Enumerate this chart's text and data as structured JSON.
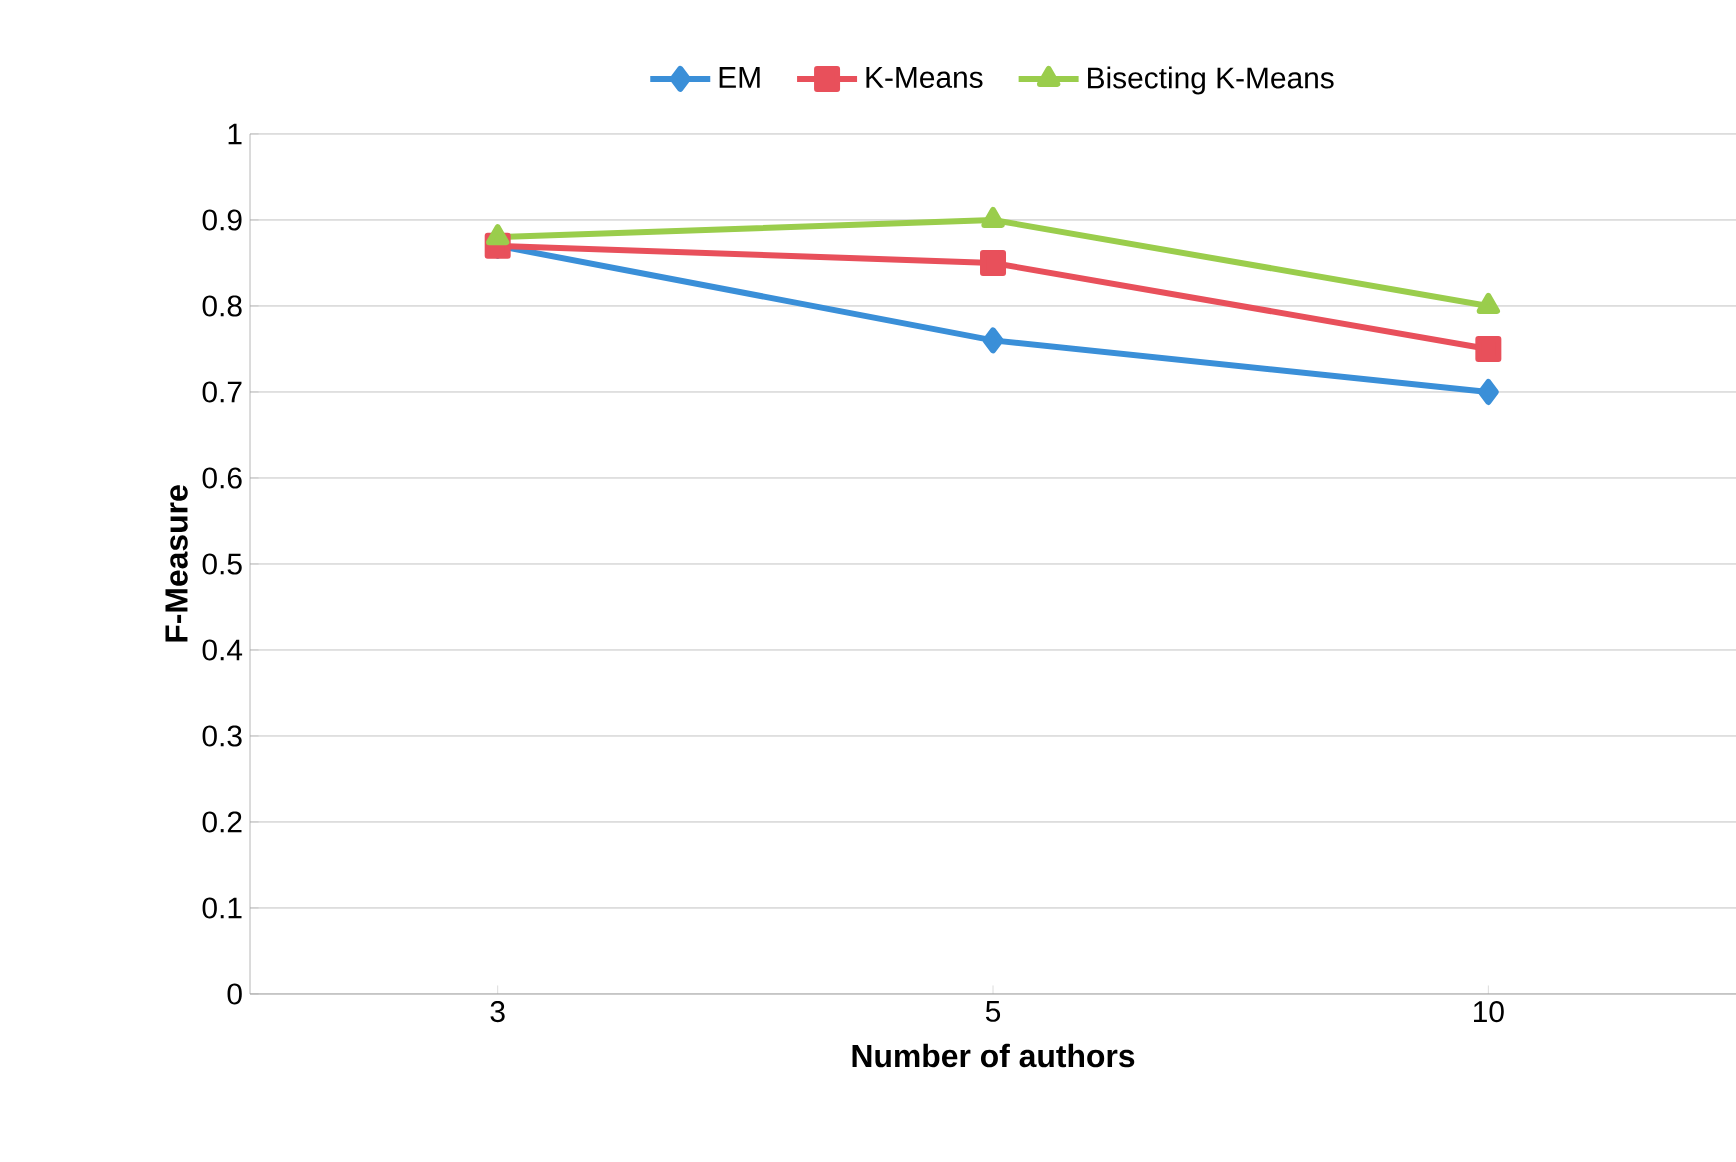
{
  "chart_data": {
    "type": "line",
    "xlabel": "Number of authors",
    "ylabel": "F-Measure",
    "categories": [
      "3",
      "5",
      "10"
    ],
    "series": [
      {
        "name": "EM",
        "color": "#3a8fd8",
        "marker": "diamond",
        "values": [
          0.87,
          0.76,
          0.7
        ]
      },
      {
        "name": "K-Means",
        "color": "#e8505b",
        "marker": "square",
        "values": [
          0.87,
          0.85,
          0.75
        ]
      },
      {
        "name": "Bisecting K-Means",
        "color": "#9acd4c",
        "marker": "triangle",
        "values": [
          0.88,
          0.9,
          0.8
        ]
      }
    ],
    "ylim": [
      0,
      1
    ],
    "yticks": [
      0,
      0.1,
      0.2,
      0.3,
      0.4,
      0.5,
      0.6,
      0.7,
      0.8,
      0.9,
      1
    ],
    "grid": "y",
    "legend": "top",
    "line_style": "solid"
  }
}
